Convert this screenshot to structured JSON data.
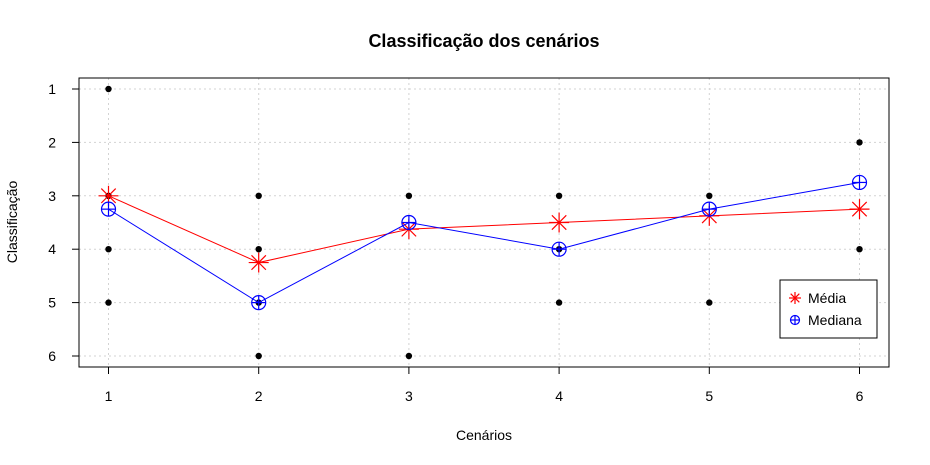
{
  "chart_data": {
    "type": "line",
    "title": "Classificação dos cenários",
    "xlabel": "Cenários",
    "ylabel": "Classificação",
    "x": [
      1,
      2,
      3,
      4,
      5,
      6
    ],
    "x_ticks": [
      "1",
      "2",
      "3",
      "4",
      "5",
      "6"
    ],
    "y_ticks": [
      "1",
      "2",
      "3",
      "4",
      "5",
      "6"
    ],
    "ylim": [
      1,
      6
    ],
    "y_reversed": true,
    "grid": true,
    "individual_points": {
      "color": "#000000",
      "points": [
        {
          "x": 1,
          "y": [
            1,
            3,
            4,
            5
          ]
        },
        {
          "x": 2,
          "y": [
            3,
            4,
            5,
            6
          ]
        },
        {
          "x": 3,
          "y": [
            3,
            6
          ]
        },
        {
          "x": 4,
          "y": [
            3,
            4,
            5
          ]
        },
        {
          "x": 5,
          "y": [
            3,
            5
          ]
        },
        {
          "x": 6,
          "y": [
            2,
            4
          ]
        }
      ]
    },
    "series": [
      {
        "name": "Média",
        "color": "#ff0000",
        "marker": "asterisk",
        "values": [
          3.0,
          4.25,
          3.625,
          3.5,
          3.375,
          3.25
        ]
      },
      {
        "name": "Mediana",
        "color": "#0000ff",
        "marker": "circle-plus",
        "values": [
          3.25,
          5.0,
          3.5,
          4.0,
          3.25,
          2.75
        ]
      }
    ],
    "legend": {
      "placement": "right",
      "entries": [
        "Média",
        "Mediana"
      ]
    }
  }
}
